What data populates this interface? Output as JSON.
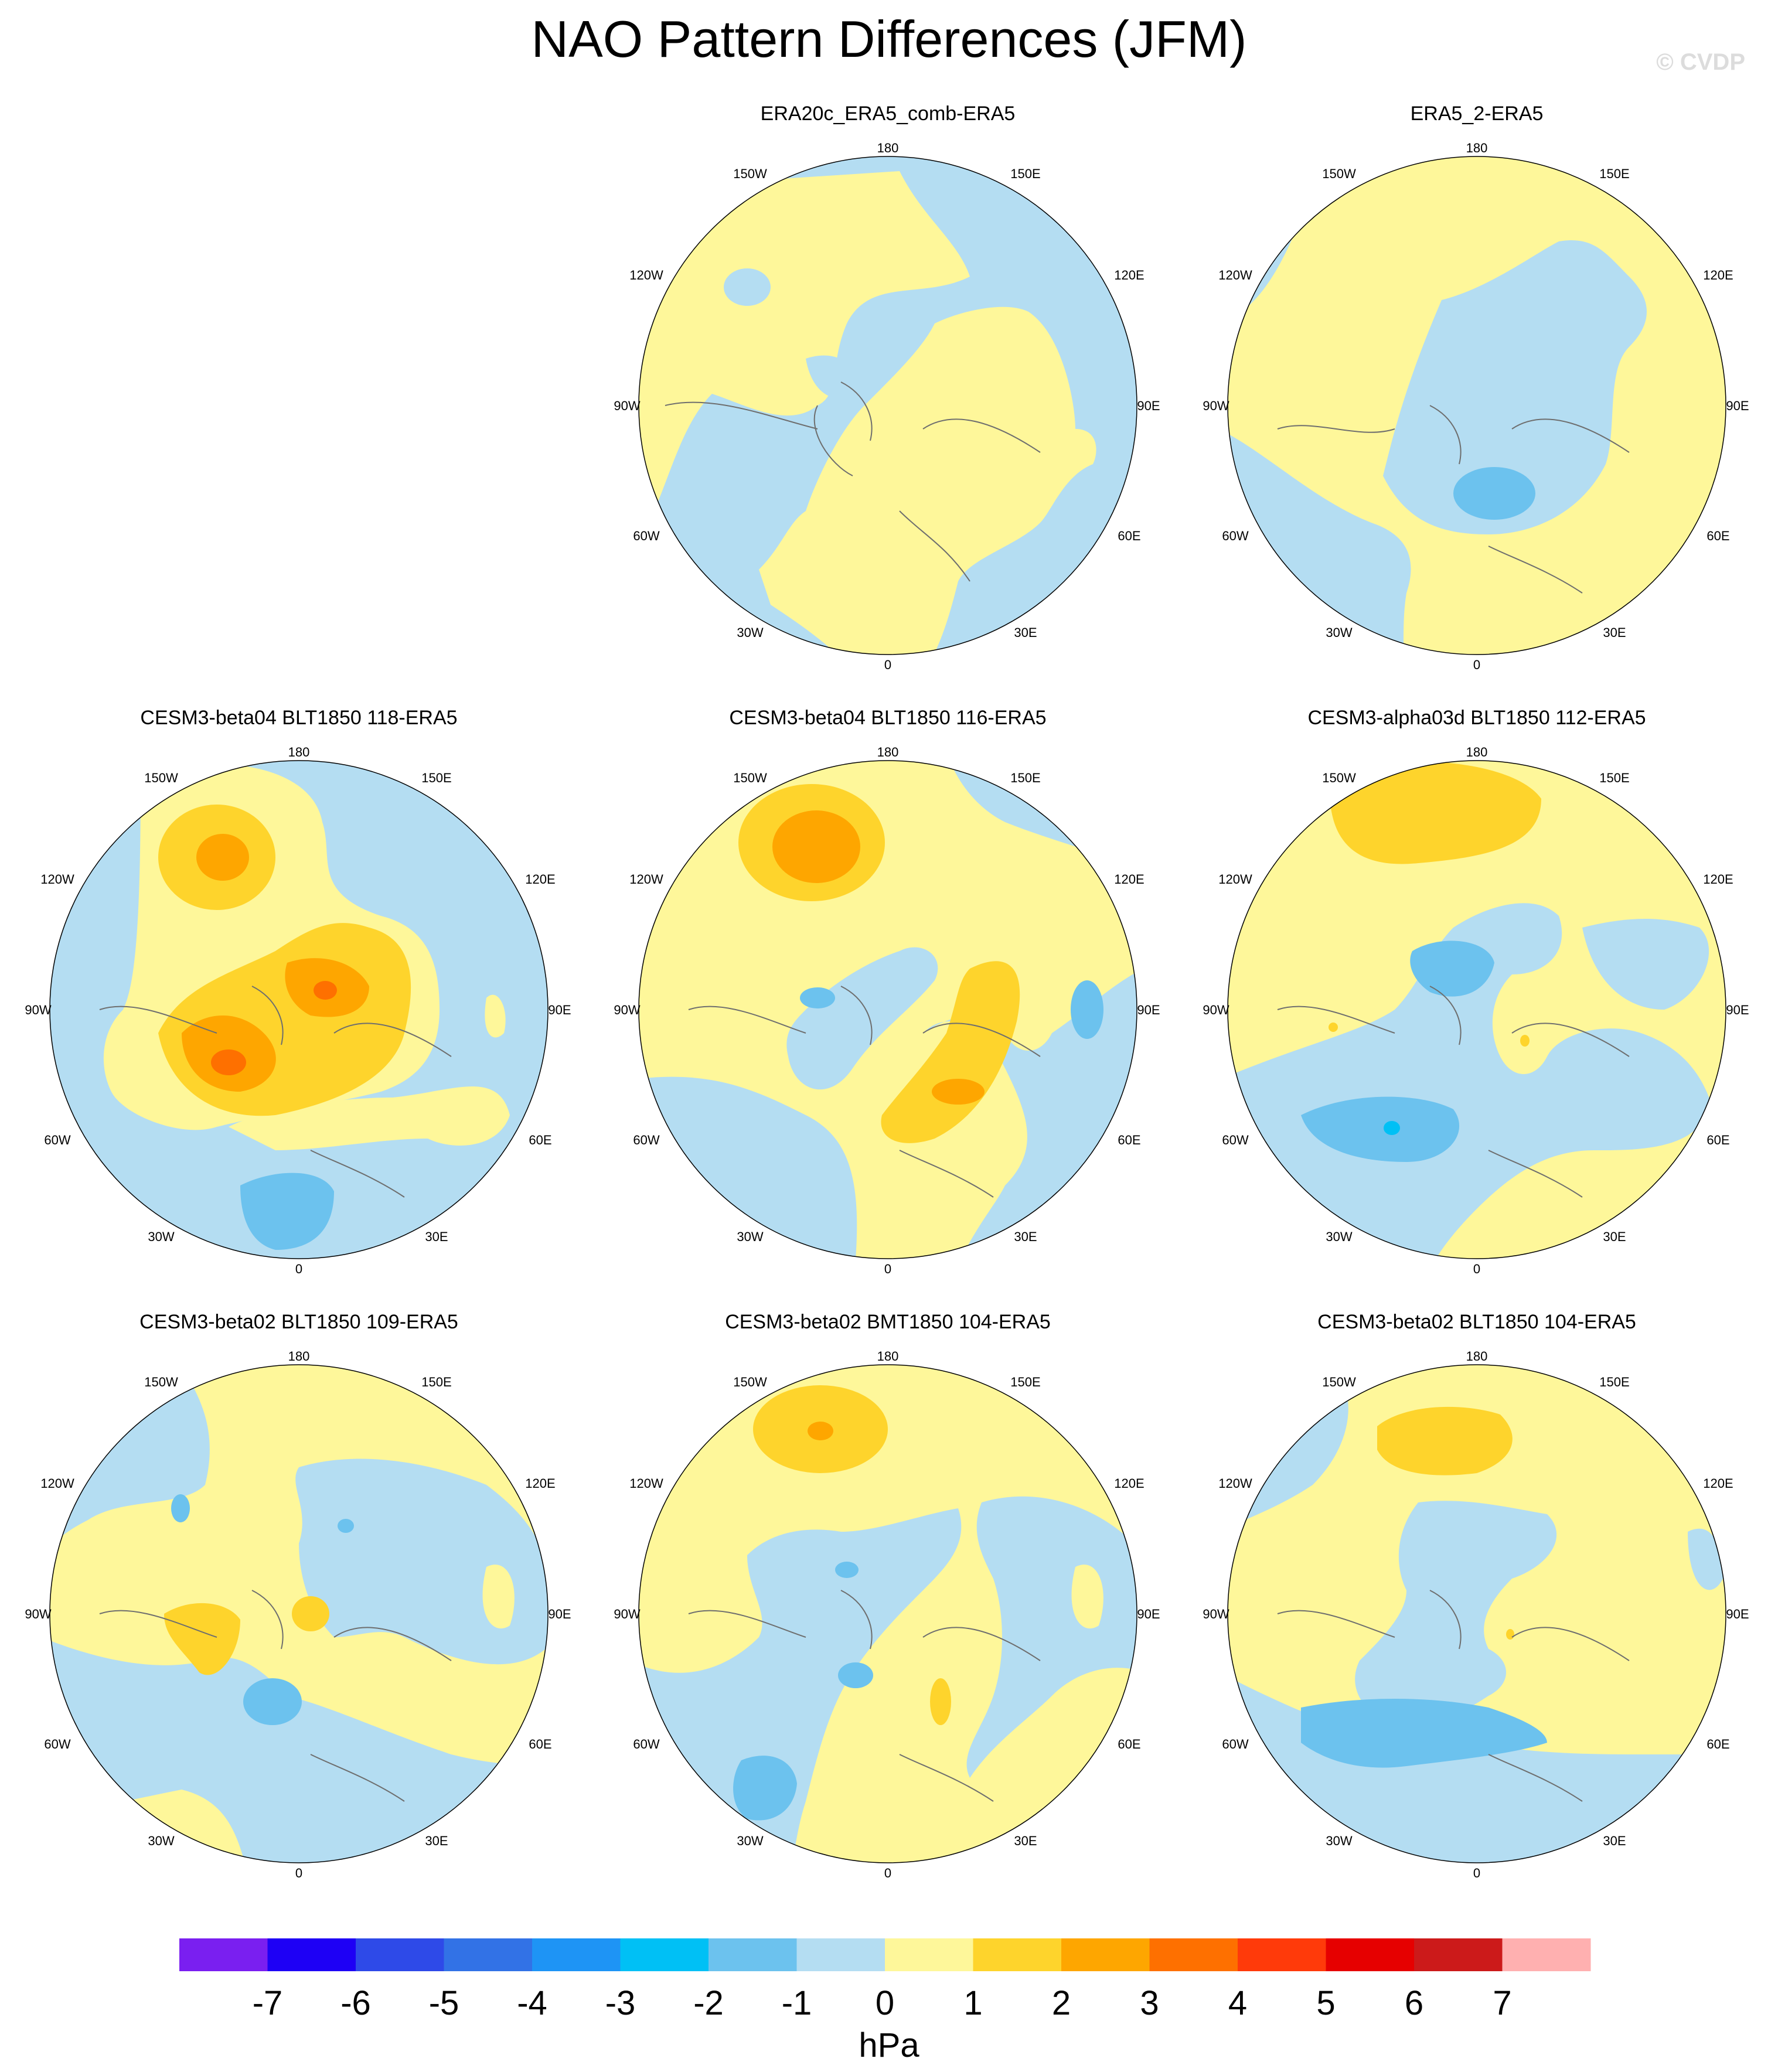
{
  "title": "NAO Pattern Differences (JFM)",
  "watermark": "© CVDP",
  "lon_labels": {
    "top": "180",
    "bottom": "0",
    "upper_left": "150W",
    "upper_right": "150E",
    "mid_upper_left": "120W",
    "mid_upper_right": "120E",
    "left": "90W",
    "right": "90E",
    "mid_lower_left": "60W",
    "mid_lower_right": "60E",
    "lower_left": "30W",
    "lower_right": "30E"
  },
  "panels": [
    {
      "id": "p1",
      "title": "ERA20c_ERA5_comb-ERA5"
    },
    {
      "id": "p2",
      "title": "ERA5_2-ERA5"
    },
    {
      "id": "p3",
      "title": "CESM3-beta04 BLT1850 118-ERA5"
    },
    {
      "id": "p4",
      "title": "CESM3-beta04 BLT1850 116-ERA5"
    },
    {
      "id": "p5",
      "title": "CESM3-alpha03d BLT1850 112-ERA5"
    },
    {
      "id": "p6",
      "title": "CESM3-beta02 BLT1850 109-ERA5"
    },
    {
      "id": "p7",
      "title": "CESM3-beta02 BMT1850 104-ERA5"
    },
    {
      "id": "p8",
      "title": "CESM3-beta02 BLT1850 104-ERA5"
    }
  ],
  "colorbar": {
    "unit": "hPa",
    "ticks": [
      "-7",
      "-6",
      "-5",
      "-4",
      "-3",
      "-2",
      "-1",
      "0",
      "1",
      "2",
      "3",
      "4",
      "5",
      "6",
      "7"
    ],
    "colors": [
      "#7a1ff0",
      "#1e00f5",
      "#2e4ae8",
      "#3272e6",
      "#1e94f5",
      "#00c0f5",
      "#6cc2ee",
      "#b4ddf2",
      "#fef79a",
      "#fed42c",
      "#fea600",
      "#fe7000",
      "#ff3a0a",
      "#e60000",
      "#cc1a1a",
      "#ffb0b0"
    ]
  },
  "colors": {
    "neg1": "#b4ddf2",
    "neg2": "#6cc2ee",
    "neg3": "#00c0f5",
    "pos1": "#fef79a",
    "pos2": "#fed42c",
    "pos3": "#fea600",
    "pos4": "#fe7000"
  }
}
